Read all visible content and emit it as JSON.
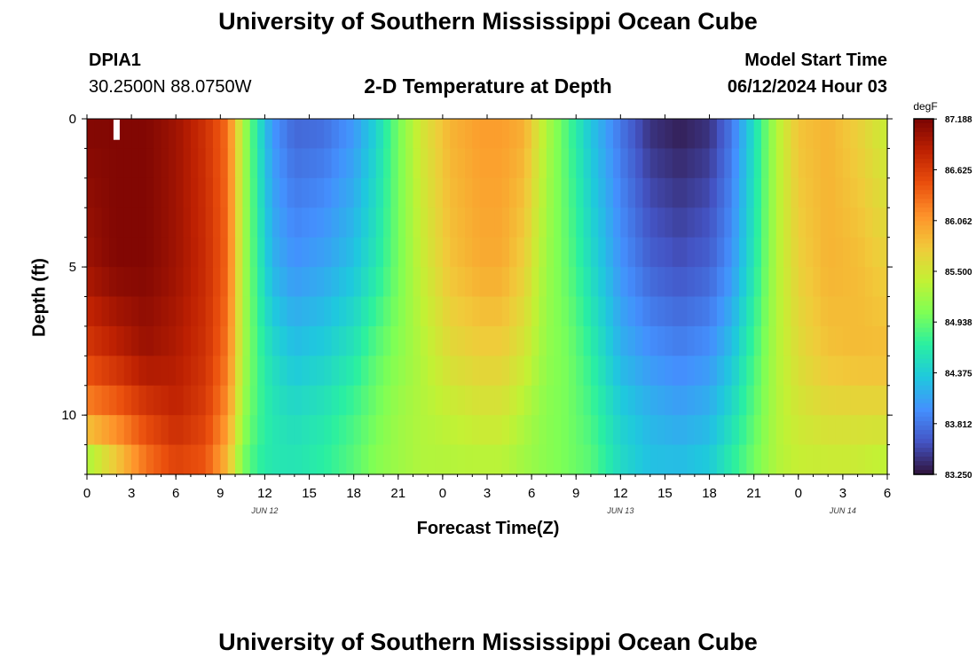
{
  "header": {
    "title": "University of Southern Mississippi Ocean Cube",
    "station": "DPIA1",
    "coordinates": "30.2500N  88.0750W",
    "subtitle": "2-D Temperature at Depth",
    "model_start_label": "Model Start Time",
    "model_start_value": "06/12/2024 Hour 03"
  },
  "footer": {
    "title": "University of Southern Mississippi Ocean Cube"
  },
  "chart_data": {
    "type": "heatmap",
    "xlabel": "Forecast Time(Z)",
    "ylabel": "Depth (ft)",
    "x_tick_labels": [
      "0",
      "3",
      "6",
      "9",
      "12",
      "15",
      "18",
      "21",
      "0",
      "3",
      "6",
      "9",
      "12",
      "15",
      "18",
      "21",
      "0",
      "3",
      "6"
    ],
    "x_range_hours": [
      0,
      54
    ],
    "day_labels": [
      {
        "label": "JUN 12",
        "hour": 12
      },
      {
        "label": "JUN 13",
        "hour": 36
      },
      {
        "label": "JUN 14",
        "hour": 51
      }
    ],
    "y_ticks": [
      "0",
      "5",
      "10"
    ],
    "y_range_ft": [
      0,
      12
    ],
    "y_inverted": true,
    "colorbar": {
      "unit": "degF",
      "labels": [
        "87.188",
        "86.625",
        "86.062",
        "85.500",
        "84.938",
        "84.375",
        "83.812",
        "83.250"
      ],
      "min": 83.25,
      "max": 87.19,
      "colors": [
        "#30123b",
        "#4454c4",
        "#4490fe",
        "#1fc8de",
        "#29efa2",
        "#7eff55",
        "#c3f134",
        "#f1ca3a",
        "#fe922a",
        "#ea4f0d",
        "#be2102",
        "#7a0403"
      ]
    },
    "profiles_hours": [
      0,
      2,
      4,
      6,
      8,
      9.5,
      10.5,
      11.5,
      12.5,
      14,
      16,
      18,
      19.5,
      21,
      22.5,
      24.5,
      26.5,
      28,
      29.5,
      31,
      32.5,
      34,
      36,
      38,
      40,
      42,
      43.5,
      45,
      46.5,
      48,
      50,
      52,
      54
    ],
    "profiles_depth_ft": [
      0,
      5,
      8,
      10,
      12
    ],
    "profiles_degF": [
      [
        87.15,
        87.0,
        86.6,
        86.1,
        85.0
      ],
      [
        87.15,
        87.15,
        86.8,
        86.3,
        85.6
      ],
      [
        87.15,
        87.15,
        87.0,
        86.6,
        86.2
      ],
      [
        87.0,
        87.0,
        86.9,
        86.8,
        86.5
      ],
      [
        86.7,
        86.75,
        86.7,
        86.6,
        86.4
      ],
      [
        86.3,
        86.35,
        86.25,
        86.1,
        85.8
      ],
      [
        85.3,
        85.3,
        85.3,
        85.2,
        85.0
      ],
      [
        84.6,
        84.7,
        84.8,
        84.8,
        84.7
      ],
      [
        84.0,
        84.2,
        84.5,
        84.6,
        84.6
      ],
      [
        83.7,
        84.0,
        84.3,
        84.5,
        84.6
      ],
      [
        83.75,
        84.1,
        84.4,
        84.6,
        84.7
      ],
      [
        84.0,
        84.3,
        84.6,
        84.8,
        84.9
      ],
      [
        84.4,
        84.6,
        84.9,
        85.0,
        85.1
      ],
      [
        85.0,
        85.0,
        85.1,
        85.2,
        85.2
      ],
      [
        85.5,
        85.4,
        85.3,
        85.3,
        85.3
      ],
      [
        85.9,
        85.8,
        85.6,
        85.4,
        85.3
      ],
      [
        86.05,
        85.95,
        85.7,
        85.5,
        85.3
      ],
      [
        86.05,
        85.95,
        85.7,
        85.5,
        85.3
      ],
      [
        85.95,
        85.7,
        85.5,
        85.3,
        85.2
      ],
      [
        85.3,
        85.2,
        85.15,
        85.1,
        85.1
      ],
      [
        84.8,
        84.9,
        85.0,
        85.0,
        85.0
      ],
      [
        84.3,
        84.5,
        84.7,
        84.8,
        84.9
      ],
      [
        83.8,
        84.0,
        84.2,
        84.4,
        84.5
      ],
      [
        83.4,
        83.7,
        84.0,
        84.2,
        84.3
      ],
      [
        83.3,
        83.6,
        83.9,
        84.1,
        84.3
      ],
      [
        83.4,
        83.7,
        84.0,
        84.2,
        84.4
      ],
      [
        83.8,
        84.0,
        84.3,
        84.5,
        84.7
      ],
      [
        84.5,
        84.6,
        84.8,
        84.9,
        85.0
      ],
      [
        85.3,
        85.3,
        85.3,
        85.3,
        85.3
      ],
      [
        85.8,
        85.7,
        85.6,
        85.5,
        85.4
      ],
      [
        85.9,
        85.9,
        85.8,
        85.6,
        85.4
      ],
      [
        85.7,
        85.85,
        85.85,
        85.6,
        85.4
      ],
      [
        85.4,
        85.7,
        85.85,
        85.6,
        85.3
      ]
    ],
    "marker": {
      "hour": 2,
      "depth_ft": 0.5
    }
  }
}
